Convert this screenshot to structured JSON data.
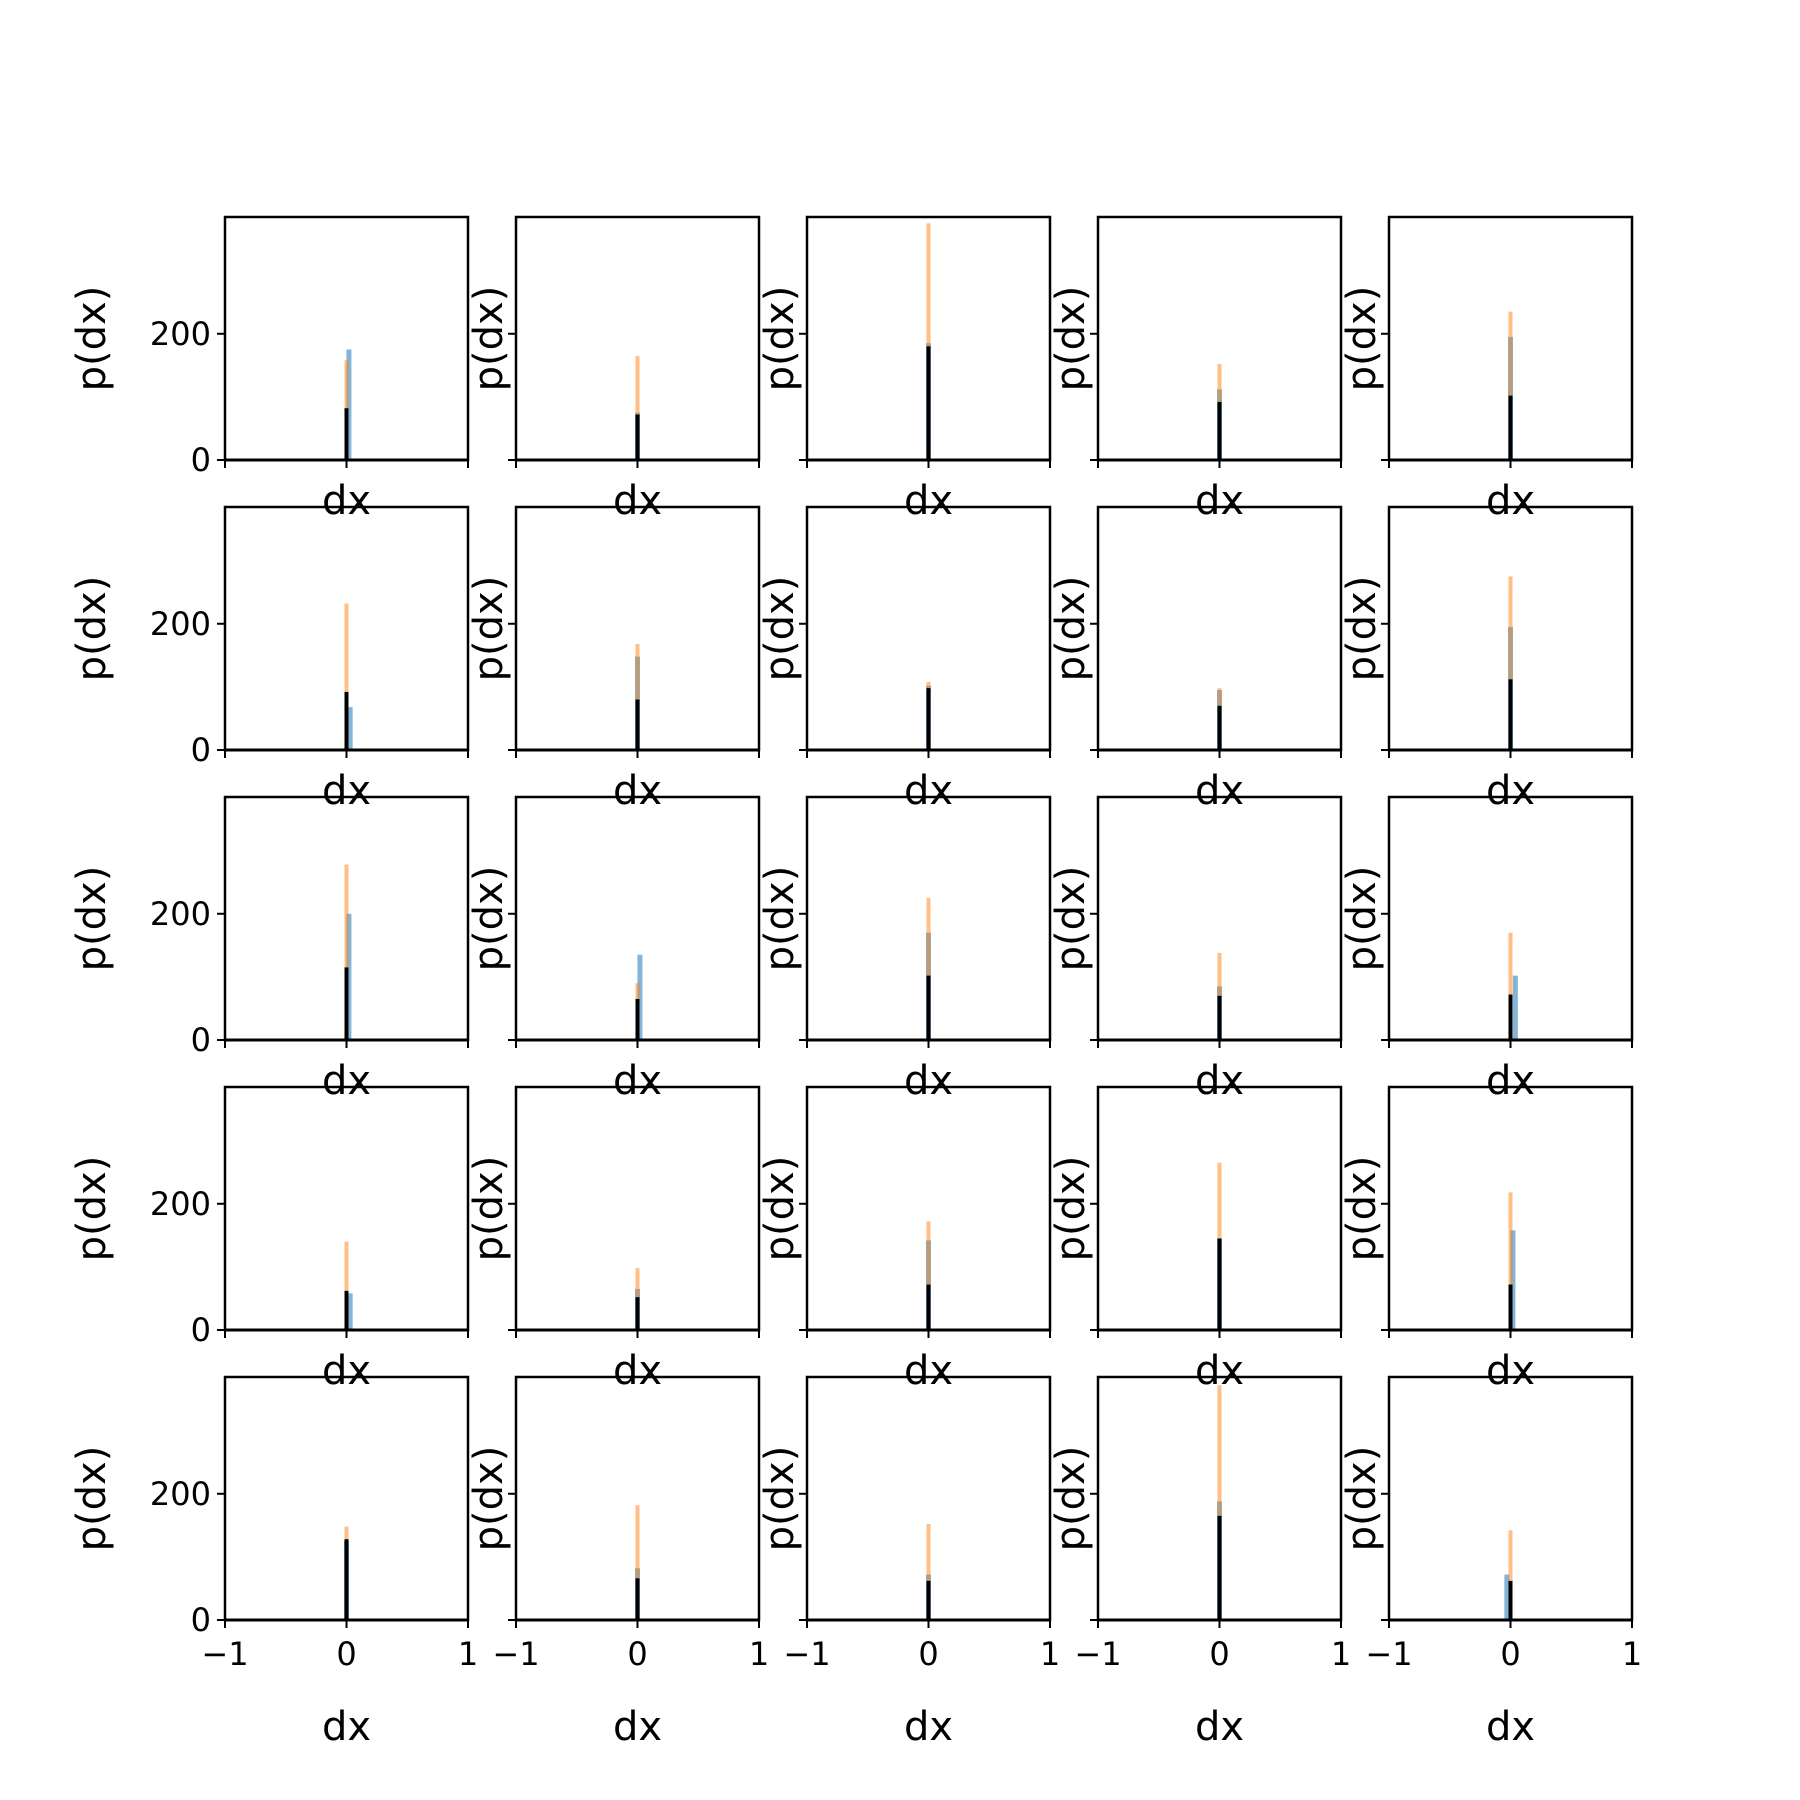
{
  "chart_data": {
    "type": "bar",
    "layout": "5x5 grid of histograms",
    "xlabel": "dx",
    "ylabel": "p(dx)",
    "xlim": [
      -1,
      1
    ],
    "ylim": [
      0,
      385
    ],
    "x_ticks": [
      "−1",
      "0",
      "1"
    ],
    "y_ticks": [
      "0",
      "200"
    ],
    "grid": false,
    "legend": "none",
    "colors": {
      "series_blue": "#1f77b4",
      "series_orange": "#ff7f0e",
      "series_black": "#000000",
      "axes": "#000000",
      "background": "#ffffff"
    },
    "panels": [
      {
        "bars": [
          {
            "series": "blue",
            "x": 0.02,
            "height": 175
          },
          {
            "series": "orange",
            "x": 0.0,
            "height": 158
          },
          {
            "series": "black",
            "x": 0.0,
            "height": 82
          }
        ]
      },
      {
        "bars": [
          {
            "series": "blue",
            "x": 0.0,
            "height": 75
          },
          {
            "series": "orange",
            "x": 0.0,
            "height": 165
          },
          {
            "series": "black",
            "x": 0.0,
            "height": 72
          }
        ]
      },
      {
        "bars": [
          {
            "series": "blue",
            "x": 0.0,
            "height": 185
          },
          {
            "series": "orange",
            "x": 0.0,
            "height": 375
          },
          {
            "series": "black",
            "x": 0.0,
            "height": 180
          }
        ]
      },
      {
        "bars": [
          {
            "series": "blue",
            "x": 0.0,
            "height": 112
          },
          {
            "series": "orange",
            "x": 0.0,
            "height": 152
          },
          {
            "series": "black",
            "x": 0.0,
            "height": 92
          }
        ]
      },
      {
        "bars": [
          {
            "series": "blue",
            "x": 0.0,
            "height": 195
          },
          {
            "series": "orange",
            "x": 0.0,
            "height": 235
          },
          {
            "series": "black",
            "x": 0.0,
            "height": 102
          }
        ]
      },
      {
        "bars": [
          {
            "series": "blue",
            "x": 0.03,
            "height": 68
          },
          {
            "series": "orange",
            "x": 0.0,
            "height": 232
          },
          {
            "series": "black",
            "x": 0.0,
            "height": 92
          }
        ]
      },
      {
        "bars": [
          {
            "series": "blue",
            "x": 0.0,
            "height": 148
          },
          {
            "series": "orange",
            "x": 0.0,
            "height": 168
          },
          {
            "series": "black",
            "x": 0.0,
            "height": 80
          }
        ]
      },
      {
        "bars": [
          {
            "series": "blue",
            "x": 0.0,
            "height": 102
          },
          {
            "series": "orange",
            "x": 0.0,
            "height": 108
          },
          {
            "series": "black",
            "x": 0.0,
            "height": 98
          }
        ]
      },
      {
        "bars": [
          {
            "series": "blue",
            "x": 0.0,
            "height": 95
          },
          {
            "series": "orange",
            "x": 0.0,
            "height": 98
          },
          {
            "series": "black",
            "x": 0.0,
            "height": 70
          }
        ]
      },
      {
        "bars": [
          {
            "series": "blue",
            "x": 0.0,
            "height": 195
          },
          {
            "series": "orange",
            "x": 0.0,
            "height": 275
          },
          {
            "series": "black",
            "x": 0.0,
            "height": 112
          }
        ]
      },
      {
        "bars": [
          {
            "series": "blue",
            "x": 0.02,
            "height": 200
          },
          {
            "series": "orange",
            "x": 0.0,
            "height": 278
          },
          {
            "series": "black",
            "x": 0.0,
            "height": 115
          }
        ]
      },
      {
        "bars": [
          {
            "series": "blue",
            "x": 0.02,
            "height": 135
          },
          {
            "series": "orange",
            "x": 0.0,
            "height": 90
          },
          {
            "series": "black",
            "x": 0.0,
            "height": 65
          }
        ]
      },
      {
        "bars": [
          {
            "series": "blue",
            "x": 0.0,
            "height": 170
          },
          {
            "series": "orange",
            "x": 0.0,
            "height": 225
          },
          {
            "series": "black",
            "x": 0.0,
            "height": 102
          }
        ]
      },
      {
        "bars": [
          {
            "series": "blue",
            "x": 0.0,
            "height": 85
          },
          {
            "series": "orange",
            "x": 0.0,
            "height": 138
          },
          {
            "series": "black",
            "x": 0.0,
            "height": 70
          }
        ]
      },
      {
        "bars": [
          {
            "series": "blue",
            "x": 0.04,
            "height": 102
          },
          {
            "series": "orange",
            "x": 0.0,
            "height": 170
          },
          {
            "series": "black",
            "x": 0.0,
            "height": 72
          }
        ]
      },
      {
        "bars": [
          {
            "series": "blue",
            "x": 0.03,
            "height": 58
          },
          {
            "series": "orange",
            "x": 0.0,
            "height": 140
          },
          {
            "series": "black",
            "x": 0.0,
            "height": 62
          }
        ]
      },
      {
        "bars": [
          {
            "series": "blue",
            "x": 0.0,
            "height": 65
          },
          {
            "series": "orange",
            "x": 0.0,
            "height": 98
          },
          {
            "series": "black",
            "x": 0.0,
            "height": 52
          }
        ]
      },
      {
        "bars": [
          {
            "series": "blue",
            "x": 0.0,
            "height": 142
          },
          {
            "series": "orange",
            "x": 0.0,
            "height": 172
          },
          {
            "series": "black",
            "x": 0.0,
            "height": 72
          }
        ]
      },
      {
        "bars": [
          {
            "series": "blue",
            "x": 0.0,
            "height": 145
          },
          {
            "series": "orange",
            "x": 0.0,
            "height": 265
          },
          {
            "series": "black",
            "x": 0.0,
            "height": 145
          }
        ]
      },
      {
        "bars": [
          {
            "series": "blue",
            "x": 0.02,
            "height": 158
          },
          {
            "series": "orange",
            "x": 0.0,
            "height": 218
          },
          {
            "series": "black",
            "x": 0.0,
            "height": 72
          }
        ]
      },
      {
        "bars": [
          {
            "series": "blue",
            "x": 0.0,
            "height": 125
          },
          {
            "series": "orange",
            "x": 0.0,
            "height": 148
          },
          {
            "series": "black",
            "x": 0.0,
            "height": 128
          }
        ]
      },
      {
        "bars": [
          {
            "series": "blue",
            "x": 0.0,
            "height": 82
          },
          {
            "series": "orange",
            "x": 0.0,
            "height": 182
          },
          {
            "series": "black",
            "x": 0.0,
            "height": 66
          }
        ]
      },
      {
        "bars": [
          {
            "series": "blue",
            "x": 0.0,
            "height": 72
          },
          {
            "series": "orange",
            "x": 0.0,
            "height": 152
          },
          {
            "series": "black",
            "x": 0.0,
            "height": 62
          }
        ]
      },
      {
        "bars": [
          {
            "series": "blue",
            "x": 0.0,
            "height": 188
          },
          {
            "series": "orange",
            "x": 0.0,
            "height": 372
          },
          {
            "series": "black",
            "x": 0.0,
            "height": 165
          }
        ]
      },
      {
        "bars": [
          {
            "series": "blue",
            "x": -0.03,
            "height": 72
          },
          {
            "series": "orange",
            "x": 0.0,
            "height": 142
          },
          {
            "series": "black",
            "x": 0.0,
            "height": 62
          }
        ]
      }
    ]
  }
}
